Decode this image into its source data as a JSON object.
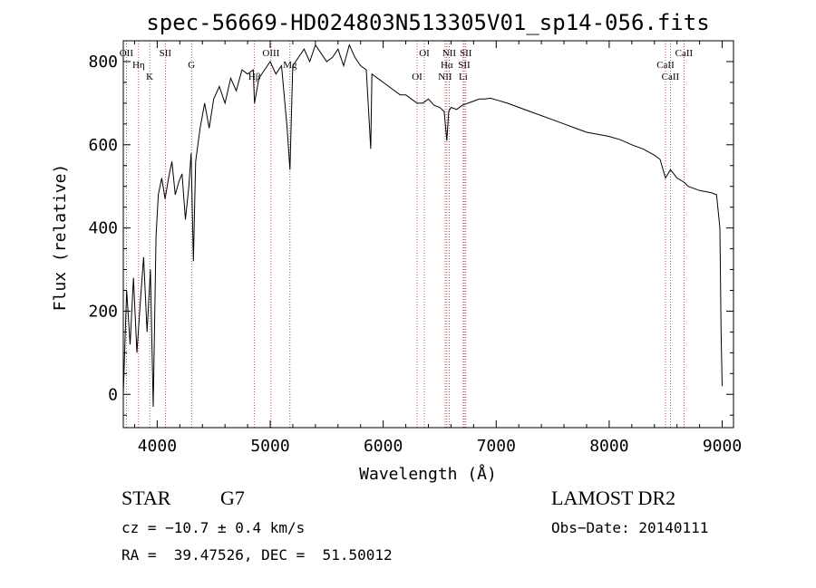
{
  "chart_data": {
    "type": "line",
    "title": "spec-56669-HD024803N513305V01_sp14-056.fits",
    "xlabel": "Wavelength (Å)",
    "ylabel": "Flux (relative)",
    "xlim": [
      3700,
      9100
    ],
    "ylim": [
      -80,
      850
    ],
    "x_ticks": [
      4000,
      5000,
      6000,
      7000,
      8000,
      9000
    ],
    "y_ticks": [
      0,
      200,
      400,
      600,
      800
    ],
    "series": [
      {
        "x": [
          3700,
          3730,
          3760,
          3790,
          3820,
          3850,
          3880,
          3910,
          3940,
          3965,
          3990,
          4010,
          4040,
          4070,
          4100,
          4130,
          4160,
          4190,
          4220,
          4250,
          4280,
          4300,
          4320,
          4340,
          4380,
          4420,
          4460,
          4500,
          4550,
          4600,
          4650,
          4700,
          4750,
          4800,
          4850,
          4861,
          4900,
          4950,
          5000,
          5050,
          5100,
          5150,
          5175,
          5200,
          5250,
          5300,
          5350,
          5400,
          5450,
          5500,
          5550,
          5600,
          5650,
          5700,
          5750,
          5800,
          5850,
          5890,
          5900,
          5950,
          6000,
          6050,
          6100,
          6150,
          6200,
          6250,
          6300,
          6350,
          6400,
          6450,
          6500,
          6540,
          6563,
          6580,
          6600,
          6650,
          6700,
          6750,
          6800,
          6850,
          6900,
          6950,
          7000,
          7100,
          7200,
          7300,
          7400,
          7500,
          7600,
          7700,
          7800,
          7900,
          8000,
          8100,
          8200,
          8300,
          8400,
          8450,
          8498,
          8542,
          8600,
          8662,
          8700,
          8800,
          8900,
          8950,
          8980,
          8990,
          9000
        ],
        "y": [
          0,
          250,
          120,
          280,
          100,
          220,
          330,
          150,
          300,
          -30,
          380,
          480,
          520,
          470,
          520,
          560,
          480,
          510,
          530,
          420,
          500,
          580,
          320,
          560,
          640,
          700,
          640,
          710,
          740,
          700,
          760,
          730,
          780,
          770,
          780,
          700,
          760,
          780,
          800,
          770,
          790,
          640,
          540,
          790,
          810,
          830,
          800,
          840,
          820,
          800,
          810,
          830,
          790,
          840,
          810,
          790,
          780,
          590,
          770,
          760,
          750,
          740,
          730,
          720,
          720,
          710,
          700,
          700,
          710,
          695,
          690,
          680,
          610,
          680,
          690,
          685,
          695,
          700,
          705,
          710,
          710,
          712,
          708,
          700,
          690,
          680,
          670,
          660,
          650,
          640,
          630,
          625,
          620,
          612,
          600,
          590,
          575,
          565,
          520,
          540,
          520,
          510,
          500,
          490,
          485,
          480,
          400,
          150,
          20
        ]
      }
    ],
    "line_labels": [
      {
        "text": "OII",
        "wave": 3727
      },
      {
        "text": "Hη",
        "wave": 3835
      },
      {
        "text": "K",
        "wave": 3934
      },
      {
        "text": "SII",
        "wave": 4072
      },
      {
        "text": "G",
        "wave": 4304
      },
      {
        "text": "Hβ",
        "wave": 4861
      },
      {
        "text": "OIII",
        "wave": 5007
      },
      {
        "text": "Mg",
        "wave": 5175
      },
      {
        "text": "OI",
        "wave": 6300
      },
      {
        "text": "OI",
        "wave": 6364
      },
      {
        "text": "Hα",
        "wave": 6563
      },
      {
        "text": "NII",
        "wave": 6548
      },
      {
        "text": "NII",
        "wave": 6584
      },
      {
        "text": "SII",
        "wave": 6717
      },
      {
        "text": "Li",
        "wave": 6708
      },
      {
        "text": "SII",
        "wave": 6731
      },
      {
        "text": "CaII",
        "wave": 8498
      },
      {
        "text": "CaII",
        "wave": 8542
      },
      {
        "text": "CaII",
        "wave": 8662
      }
    ],
    "grid": false,
    "legend": "none"
  },
  "info": {
    "object_class": "STAR",
    "subclass": "G7",
    "survey": "LAMOST DR2",
    "cz": "cz = −10.7 ± 0.4 km/s",
    "obs_date": "Obs−Date: 20140111",
    "coords": "RA =  39.47526, DEC =  51.50012"
  }
}
